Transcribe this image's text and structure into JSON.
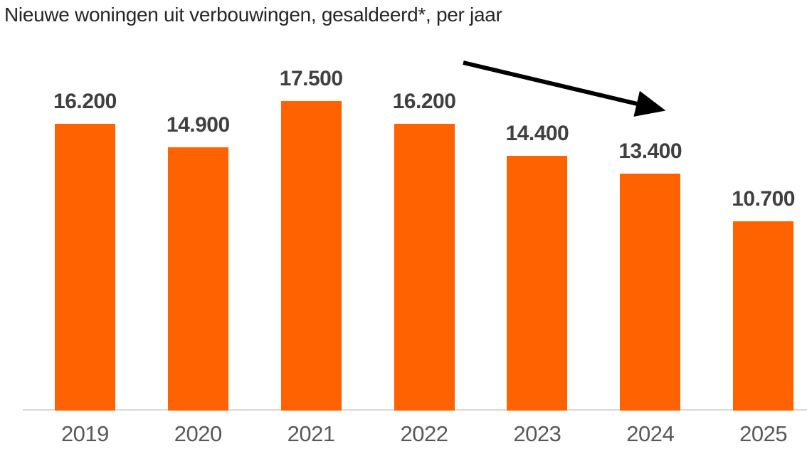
{
  "title": "Nieuwe woningen uit verbouwingen, gesaldeerd*, per jaar",
  "colors": {
    "bar": "#FF6200",
    "value_label": "#404040",
    "tick_label": "#595959",
    "axis_line": "#D9D9D9",
    "arrow": "#000000",
    "background": "#FFFFFF"
  },
  "chart_data": {
    "type": "bar",
    "title": "Nieuwe woningen uit verbouwingen, gesaldeerd*, per jaar",
    "categories": [
      "2019",
      "2020",
      "2021",
      "2022",
      "2023",
      "2024",
      "2025"
    ],
    "values": [
      16200,
      14900,
      17500,
      16200,
      14400,
      13400,
      10700
    ],
    "value_labels": [
      "16.200",
      "14.900",
      "17.500",
      "16.200",
      "14.400",
      "13.400",
      "10.700"
    ],
    "xlabel": "",
    "ylabel": "",
    "ylim": [
      0,
      17500
    ],
    "grid": false,
    "legend": false,
    "y_axis_visible": false,
    "annotations": [
      {
        "type": "arrow",
        "meaning": "downward trend from 2022 to 2024",
        "direction": "down-right"
      }
    ]
  }
}
